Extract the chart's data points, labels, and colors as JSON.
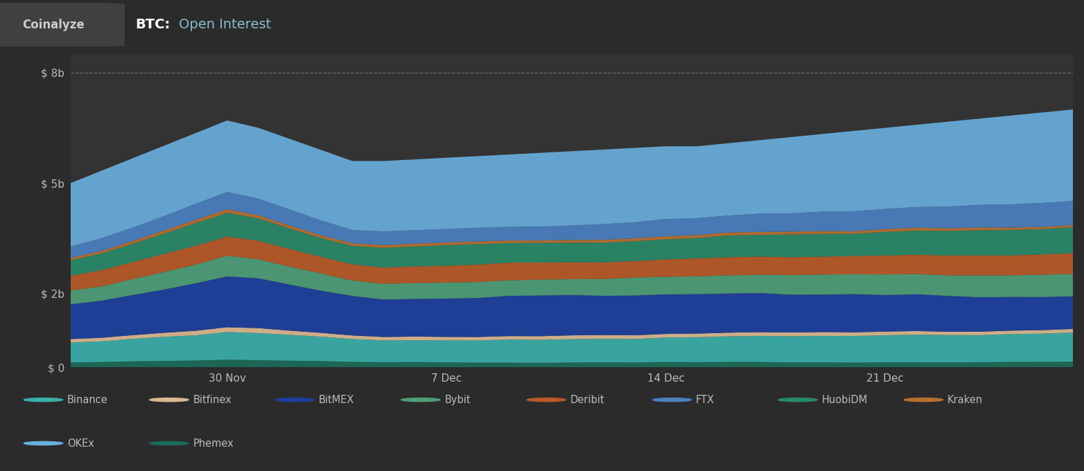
{
  "title_btc": "BTC:",
  "title_rest": "Open Interest",
  "coinalyze": "Coinalyze",
  "bg_color": "#2b2b2b",
  "plot_bg_color": "#333333",
  "header_bg_color": "#222222",
  "text_color": "#bbbbbb",
  "colors": {
    "Phemex": "#1a6b5a",
    "Binance": "#3aafa9",
    "Bitfinex": "#dbb890",
    "BitMEX": "#1e3f9e",
    "Bybit": "#4e9e78",
    "Deribit": "#b85a28",
    "HuobiDM": "#2a8a6a",
    "Kraken": "#b87030",
    "FTX": "#4a80c0",
    "OKEx": "#6aaedd"
  },
  "legend_order": [
    "Binance",
    "Bitfinex",
    "BitMEX",
    "Bybit",
    "Deribit",
    "FTX",
    "HuobiDM",
    "Kraken",
    "OKEx",
    "Phemex"
  ],
  "ytick_labels": [
    "$ 0",
    "$ 2b",
    "$ 5b",
    "$ 8b"
  ],
  "xtick_labels": [
    "30 Nov",
    "7 Dec",
    "14 Dec",
    "21 Dec"
  ]
}
